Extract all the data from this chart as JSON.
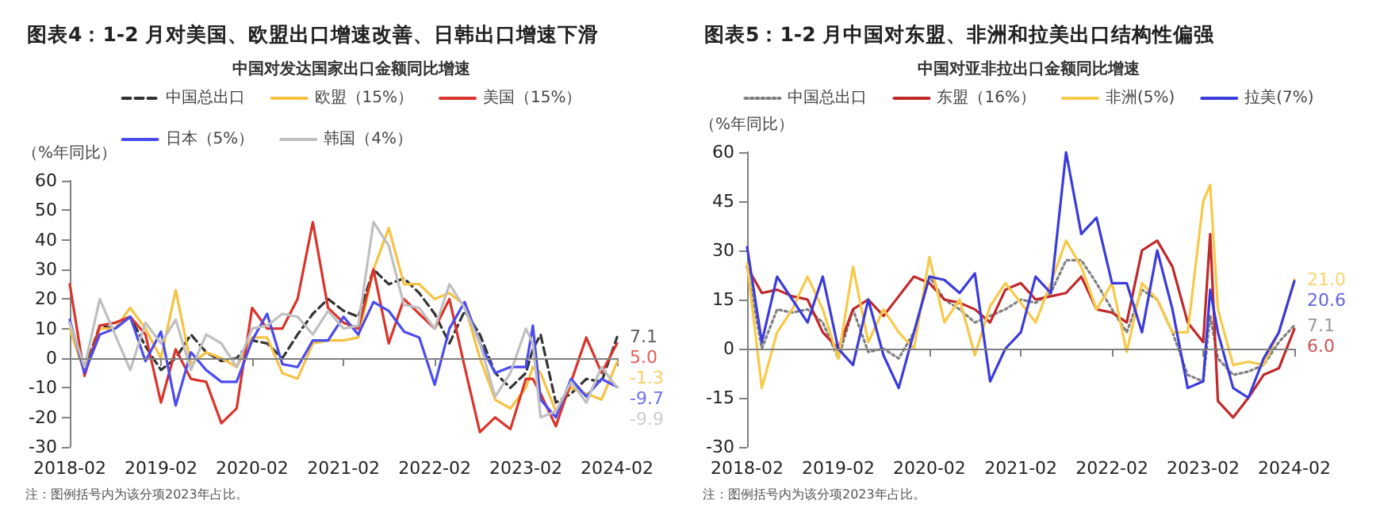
{
  "chart_data": [
    {
      "type": "line",
      "title": "图表4：1-2 月对美国、欧盟出口增速改善、日韩出口增速下滑",
      "subtitle": "中国对发达国家出口金额同比增速",
      "ylabel": "（%年同比）",
      "x": [
        "2018-02",
        "2018-04",
        "2018-06",
        "2018-08",
        "2018-10",
        "2018-12",
        "2019-02",
        "2019-04",
        "2019-06",
        "2019-08",
        "2019-10",
        "2019-12",
        "2020-02",
        "2020-04",
        "2020-06",
        "2020-08",
        "2020-10",
        "2020-12",
        "2021-02",
        "2021-04",
        "2021-06",
        "2021-08",
        "2021-10",
        "2021-12",
        "2022-02",
        "2022-04",
        "2022-06",
        "2022-08",
        "2022-10",
        "2022-12",
        "2023-02",
        "2023-03",
        "2023-04",
        "2023-06",
        "2023-08",
        "2023-10",
        "2023-12",
        "2024-02"
      ],
      "series": [
        {
          "name": "中国总出口",
          "color": "#333333",
          "line_style": "dashed",
          "values": [
            12,
            -4,
            11,
            10,
            14,
            4,
            -4,
            0,
            8,
            2,
            -1,
            0,
            6,
            5,
            0,
            8,
            15,
            20,
            16,
            14,
            30,
            25,
            27,
            22,
            15,
            5,
            16,
            8,
            -5,
            -10,
            -5,
            3,
            8,
            -15,
            -12,
            -7,
            -8,
            7.1
          ]
        },
        {
          "name": "欧盟（15%）",
          "color": "#f5c242",
          "line_style": "solid",
          "values": [
            10,
            -5,
            10,
            10,
            17,
            10,
            0,
            23,
            -2,
            2,
            0,
            -3,
            7,
            7,
            -5,
            -7,
            5,
            6,
            6,
            7,
            30,
            44,
            25,
            25,
            20,
            22,
            18,
            0,
            -14,
            -17,
            -10,
            -3,
            -5,
            -18,
            -10,
            -12,
            -14,
            -1.3
          ]
        },
        {
          "name": "美国（15%）",
          "color": "#d9342b",
          "line_style": "solid",
          "values": [
            25,
            -6,
            11,
            12,
            14,
            8,
            -15,
            3,
            -7,
            -8,
            -22,
            -17,
            17,
            10,
            10,
            20,
            46,
            17,
            12,
            10,
            30,
            5,
            20,
            15,
            10,
            20,
            -3,
            -25,
            -20,
            -24,
            -7,
            -7,
            -12,
            -23,
            -8,
            7,
            -5,
            5.0
          ]
        },
        {
          "name": "日本（5%）",
          "color": "#4b4bf0",
          "line_style": "solid",
          "values": [
            13,
            -5,
            8,
            10,
            14,
            -1,
            9,
            -16,
            2,
            -4,
            -8,
            -8,
            6,
            15,
            -2,
            -3,
            6,
            6,
            14,
            8,
            19,
            16,
            9,
            7,
            -9,
            10,
            19,
            5,
            -5,
            -3,
            -3,
            11,
            -14,
            -20,
            -7,
            -13,
            -7,
            -9.7
          ]
        },
        {
          "name": "韩国（4%）",
          "color": "#bfbfbf",
          "line_style": "solid",
          "values": [
            12,
            -3,
            20,
            8,
            -4,
            12,
            5,
            13,
            -4,
            8,
            5,
            -3,
            10,
            11,
            15,
            14,
            8,
            16,
            10,
            11,
            46,
            38,
            18,
            17,
            10,
            25,
            17,
            5,
            -13,
            -5,
            10,
            5,
            -20,
            -18,
            -8,
            -15,
            -3,
            -9.9
          ]
        }
      ],
      "xlim": [
        "2018-02",
        "2024-02"
      ],
      "xticks": [
        "2018-02",
        "2019-02",
        "2020-02",
        "2021-02",
        "2022-02",
        "2023-02",
        "2024-02"
      ],
      "ylim": [
        -30,
        60
      ],
      "yticks": [
        -30,
        -20,
        -10,
        0,
        10,
        20,
        30,
        40,
        50,
        60
      ],
      "ref_lines": [
        {
          "axis": "y",
          "value": 0,
          "color": "#808080"
        }
      ],
      "annotations": [
        {
          "text": "7.1",
          "x": "2024-02",
          "y": 7.1
        },
        {
          "text": "5.0",
          "x": "2024-02",
          "y": 5.0
        },
        {
          "text": "-1.3",
          "x": "2024-02",
          "y": -1.3
        },
        {
          "text": "-9.7",
          "x": "2024-02",
          "y": -9.7
        },
        {
          "text": "-9.9",
          "x": "2024-02",
          "y": -9.9
        },
        "注：图例括号内为该分项2023年占比。"
      ],
      "grid": false,
      "legend": "top",
      "marker": "none"
    },
    {
      "type": "line",
      "title": "图表5：1-2 月中国对东盟、非洲和拉美出口结构性偏强",
      "subtitle": "中国对亚非拉出口金额同比增速",
      "ylabel": "（%年同比）",
      "x": [
        "2018-02",
        "2018-04",
        "2018-06",
        "2018-08",
        "2018-10",
        "2018-12",
        "2019-02",
        "2019-04",
        "2019-06",
        "2019-08",
        "2019-10",
        "2019-12",
        "2020-02",
        "2020-04",
        "2020-06",
        "2020-08",
        "2020-10",
        "2020-12",
        "2021-02",
        "2021-04",
        "2021-06",
        "2021-08",
        "2021-10",
        "2021-12",
        "2022-02",
        "2022-04",
        "2022-06",
        "2022-08",
        "2022-10",
        "2022-12",
        "2023-02",
        "2023-03",
        "2023-04",
        "2023-06",
        "2023-08",
        "2023-10",
        "2023-12",
        "2024-02"
      ],
      "series": [
        {
          "name": "中国总出口",
          "color": "#7f7f7f",
          "line_style": "dotted",
          "values": [
            25,
            0,
            12,
            11,
            12,
            8,
            -3,
            12,
            -1,
            0,
            -3,
            5,
            22,
            15,
            12,
            8,
            10,
            12,
            15,
            14,
            17,
            27,
            27,
            20,
            12,
            5,
            18,
            15,
            5,
            -8,
            -10,
            10,
            -3,
            -8,
            -7,
            -5,
            2,
            7.1
          ]
        },
        {
          "name": "东盟（16%）",
          "color": "#c0282a",
          "line_style": "solid",
          "values": [
            25,
            17,
            18,
            16,
            15,
            5,
            0,
            12,
            15,
            10,
            16,
            22,
            20,
            15,
            14,
            12,
            8,
            18,
            20,
            15,
            16,
            17,
            22,
            12,
            11,
            8,
            30,
            33,
            25,
            8,
            2,
            35,
            -16,
            -21,
            -15,
            -8,
            -6,
            6.0
          ]
        },
        {
          "name": "非洲(5%)",
          "color": "#f7c948",
          "line_style": "solid",
          "values": [
            26,
            -12,
            5,
            12,
            22,
            12,
            -3,
            25,
            2,
            12,
            5,
            0,
            28,
            8,
            15,
            -2,
            13,
            20,
            14,
            8,
            20,
            33,
            25,
            12,
            20,
            -1,
            20,
            15,
            5,
            5,
            45,
            50,
            12,
            -5,
            -4,
            -5,
            5,
            21.0
          ]
        },
        {
          "name": "拉美(7%)",
          "color": "#3b3bdc",
          "line_style": "solid",
          "values": [
            31,
            2,
            22,
            15,
            8,
            22,
            0,
            -5,
            15,
            -2,
            -12,
            5,
            22,
            21,
            17,
            23,
            -10,
            0,
            5,
            22,
            17,
            60,
            35,
            40,
            20,
            20,
            5,
            30,
            12,
            -12,
            -10,
            18,
            5,
            -12,
            -15,
            -3,
            5,
            20.6
          ]
        }
      ],
      "xlim": [
        "2018-02",
        "2024-02"
      ],
      "xticks": [
        "2018-02",
        "2019-02",
        "2020-02",
        "2021-02",
        "2022-02",
        "2023-02",
        "2024-02"
      ],
      "ylim": [
        -30,
        60
      ],
      "yticks": [
        -30,
        -15,
        0,
        15,
        30,
        45,
        60
      ],
      "ref_lines": [
        {
          "axis": "y",
          "value": 0,
          "color": "#808080"
        }
      ],
      "annotations": [
        {
          "text": "21.0",
          "x": "2024-02",
          "y": 21.0
        },
        {
          "text": "20.6",
          "x": "2024-02",
          "y": 20.6
        },
        {
          "text": "7.1",
          "x": "2024-02",
          "y": 7.1
        },
        {
          "text": "6.0",
          "x": "2024-02",
          "y": 6.0
        },
        "注：图例括号内为该分项2023年占比。"
      ],
      "grid": false,
      "legend": "top",
      "marker": "none"
    }
  ]
}
